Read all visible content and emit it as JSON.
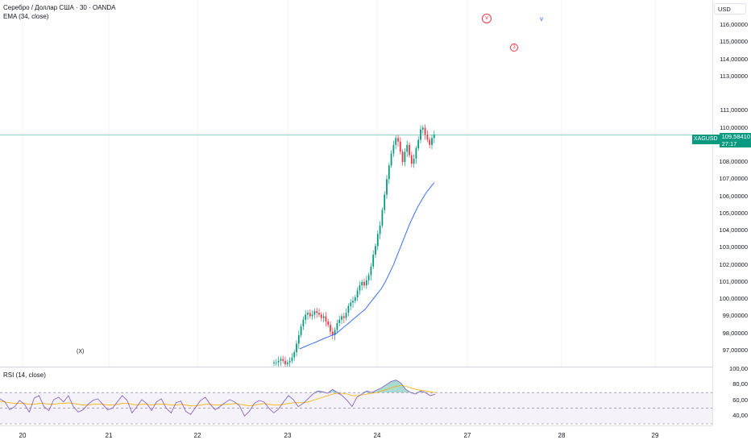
{
  "chart": {
    "title": "Серебро / Доллар США · 30 · OANDA",
    "ema_label": "EMA (34, close)",
    "rsi_label": "RSI (14, close)",
    "currency": "USD",
    "symbol": "XAGUSD",
    "last_price": "109,58410",
    "countdown": "27:17",
    "markers": {
      "x": "(X)",
      "v1": "v",
      "v2": "v",
      "three": "3"
    },
    "colors": {
      "up": "#089981",
      "down": "#f23645",
      "ema": "#2962ff",
      "rsi": "#7e57c2",
      "rsi_ma": "#f9b200",
      "last_line": "#089981"
    }
  },
  "chart_data": {
    "type": "candlestick",
    "title": "Серебро / Доллар США · 30 · OANDA",
    "currency": "USD",
    "ylim": [
      96.2,
      116.8
    ],
    "y_ticks": [
      "116,00000",
      "115,00000",
      "114,00000",
      "113,00000",
      "111,00000",
      "110,00000",
      "108,00000",
      "107,00000",
      "106,00000",
      "105,00000",
      "104,00000",
      "103,00000",
      "102,00000",
      "101,00000",
      "100,00000",
      "99,00000",
      "98,00000",
      "97,00000"
    ],
    "x_ticks": [
      "20",
      "21",
      "22",
      "23",
      "24",
      "27",
      "28",
      "29"
    ],
    "last_price": 109.5841,
    "candle_closes": [
      96.3,
      96.3,
      96.4,
      96.5,
      96.4,
      96.2,
      96.3,
      96.4,
      96.6,
      96.9,
      97.4,
      97.9,
      98.4,
      98.8,
      99.1,
      99.2,
      99.0,
      99.1,
      99.3,
      99.2,
      99.1,
      98.9,
      99.0,
      98.7,
      98.5,
      98.1,
      97.9,
      98.2,
      98.6,
      98.8,
      99.0,
      98.9,
      99.2,
      99.6,
      99.8,
      99.9,
      100.1,
      100.5,
      100.8,
      101.0,
      100.8,
      101.1,
      101.4,
      101.9,
      102.6,
      103.1,
      103.8,
      104.3,
      105.2,
      106.1,
      107.0,
      107.8,
      108.5,
      109.0,
      109.4,
      109.2,
      108.6,
      108.0,
      108.6,
      109.0,
      108.4,
      107.9,
      108.2,
      108.8,
      109.3,
      109.9,
      110.0,
      109.6,
      109.3,
      109.0,
      109.4,
      109.6
    ],
    "ema_34": [
      97.1,
      97.2,
      97.3,
      97.4,
      97.5,
      97.6,
      97.7,
      97.8,
      97.9,
      98.0,
      98.2,
      98.4,
      98.6,
      98.8,
      99.0,
      99.2,
      99.4,
      99.7,
      100.0,
      100.3,
      100.6,
      101.0,
      101.5,
      102.0,
      102.6,
      103.2,
      103.8,
      104.4,
      104.9,
      105.4,
      105.8,
      106.2,
      106.5,
      106.8
    ],
    "rsi": {
      "ylim": [
        30,
        100
      ],
      "y_ticks": [
        "100,00",
        "80,00",
        "60,00",
        "40,00"
      ],
      "upper_band": 70,
      "middle": 50,
      "lower_band": 30,
      "values": [
        62,
        58,
        48,
        52,
        60,
        55,
        45,
        63,
        66,
        52,
        47,
        61,
        64,
        58,
        66,
        52,
        45,
        48,
        55,
        60,
        62,
        55,
        48,
        50,
        58,
        66,
        60,
        44,
        52,
        61,
        56,
        47,
        58,
        62,
        50,
        44,
        57,
        59,
        46,
        42,
        51,
        60,
        64,
        55,
        48,
        52,
        57,
        61,
        58,
        53,
        40,
        46,
        56,
        60,
        58,
        50,
        44,
        49,
        58,
        66,
        61,
        52,
        56,
        62,
        68,
        72,
        71,
        69,
        74,
        70,
        66,
        60,
        52,
        64,
        68,
        72,
        70,
        73,
        76,
        80,
        84,
        86,
        82,
        74,
        70,
        68,
        72,
        70,
        66,
        68
      ],
      "ma": [
        59,
        58,
        57,
        56,
        56,
        56,
        55,
        55,
        56,
        56,
        55,
        55,
        56,
        56,
        57,
        56,
        55,
        54,
        54,
        55,
        55,
        55,
        54,
        54,
        55,
        56,
        56,
        55,
        54,
        55,
        55,
        54,
        55,
        55,
        55,
        54,
        54,
        55,
        54,
        53,
        53,
        54,
        55,
        55,
        54,
        54,
        55,
        55,
        56,
        55,
        54,
        53,
        54,
        55,
        56,
        55,
        54,
        54,
        55,
        56,
        57,
        57,
        57,
        58,
        60,
        62,
        64,
        66,
        68,
        69,
        69,
        68,
        66,
        66,
        67,
        68,
        69,
        70,
        72,
        74,
        76,
        78,
        79,
        78,
        76,
        74,
        73,
        72,
        71,
        70
      ]
    }
  }
}
